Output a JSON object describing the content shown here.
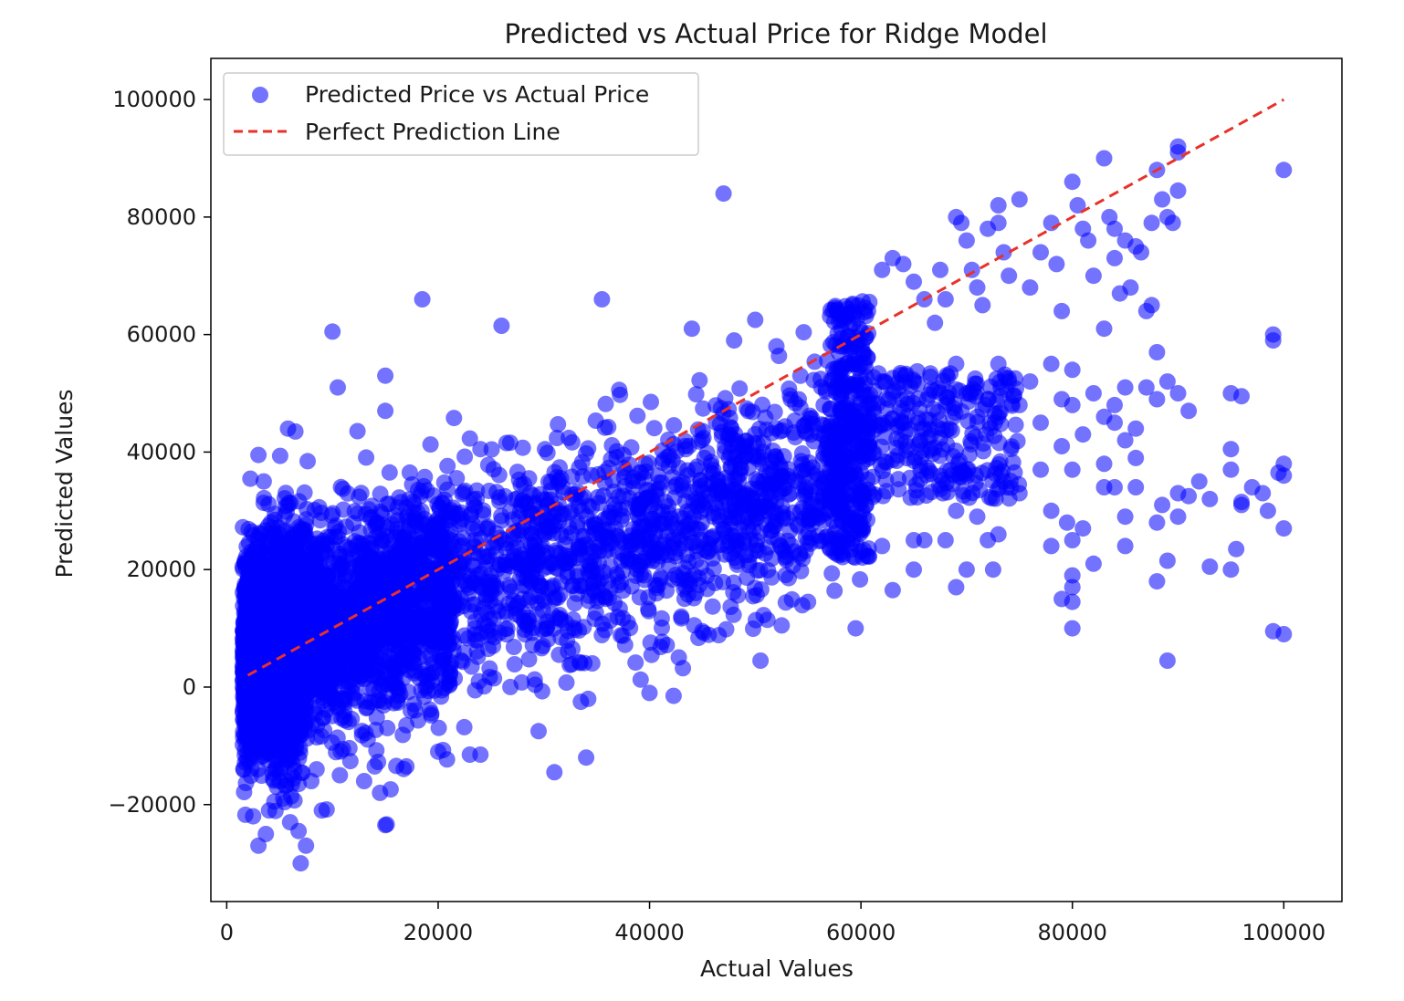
{
  "chart_data": {
    "type": "scatter",
    "title": "Predicted vs Actual Price for Ridge Model",
    "xlabel": "Actual Values",
    "ylabel": "Predicted Values",
    "xlim": [
      -1500,
      105500
    ],
    "ylim": [
      -36500,
      107000
    ],
    "x_ticks": [
      0,
      20000,
      40000,
      60000,
      80000,
      100000
    ],
    "x_tick_labels": [
      "0",
      "20000",
      "40000",
      "60000",
      "80000",
      "100000"
    ],
    "y_ticks": [
      -20000,
      0,
      20000,
      40000,
      60000,
      80000,
      100000
    ],
    "y_tick_labels": [
      "−20000",
      "0",
      "20000",
      "40000",
      "60000",
      "80000",
      "100000"
    ],
    "grid": false,
    "legend_position": "top-left",
    "series": [
      {
        "name": "Predicted Price vs Actual Price",
        "kind": "scatter",
        "color": "#0000ff",
        "opacity": 0.55,
        "note_on_density": "dense cloud along trend (actual 1500-60000) rendered from listed outliers plus band",
        "band": {
          "x_min": 1500,
          "x_max": 60500,
          "slope": 0.55,
          "intercept": 4500,
          "spread": 9000
        },
        "points": [
          [
            2500,
            -22000
          ],
          [
            3000,
            -27000
          ],
          [
            4000,
            -21000
          ],
          [
            4500,
            -19500
          ],
          [
            3700,
            -25000
          ],
          [
            6000,
            -23000
          ],
          [
            6800,
            -24500
          ],
          [
            7000,
            -30000
          ],
          [
            7500,
            -27000
          ],
          [
            9000,
            -21000
          ],
          [
            8000,
            -16000
          ],
          [
            5000,
            -16000
          ],
          [
            6800,
            -16500
          ],
          [
            8500,
            -14000
          ],
          [
            13000,
            -16000
          ],
          [
            14500,
            -18000
          ],
          [
            15000,
            -23500
          ],
          [
            14000,
            -13500
          ],
          [
            17000,
            -6500
          ],
          [
            17000,
            -13500
          ],
          [
            20000,
            -11000
          ],
          [
            23000,
            -11500
          ],
          [
            24000,
            -11500
          ],
          [
            29500,
            -7500
          ],
          [
            31000,
            -14500
          ],
          [
            34000,
            -12000
          ],
          [
            33500,
            -2500
          ],
          [
            34200,
            -2000
          ],
          [
            40000,
            -1000
          ],
          [
            18500,
            66000
          ],
          [
            35500,
            66000
          ],
          [
            10000,
            60500
          ],
          [
            26000,
            61500
          ],
          [
            10500,
            51000
          ],
          [
            15000,
            53000
          ],
          [
            5800,
            44000
          ],
          [
            6500,
            43500
          ],
          [
            3000,
            39500
          ],
          [
            3500,
            35000
          ],
          [
            15000,
            47000
          ],
          [
            24000,
            40500
          ],
          [
            47000,
            84000
          ],
          [
            44000,
            61000
          ],
          [
            48000,
            59000
          ],
          [
            50000,
            62500
          ],
          [
            52000,
            58000
          ],
          [
            50500,
            4500
          ],
          [
            52500,
            10500
          ],
          [
            59500,
            10000
          ],
          [
            45000,
            9500
          ],
          [
            43000,
            12000
          ],
          [
            55000,
            14500
          ],
          [
            60500,
            31000
          ],
          [
            62000,
            24000
          ],
          [
            63000,
            16500
          ],
          [
            65000,
            20000
          ],
          [
            65000,
            25000
          ],
          [
            66000,
            25000
          ],
          [
            68000,
            25000
          ],
          [
            69000,
            17000
          ],
          [
            69000,
            30000
          ],
          [
            70000,
            20000
          ],
          [
            71000,
            29000
          ],
          [
            72500,
            20000
          ],
          [
            72000,
            25000
          ],
          [
            73000,
            26000
          ],
          [
            75000,
            33000
          ],
          [
            77000,
            37000
          ],
          [
            78000,
            30000
          ],
          [
            78000,
            24000
          ],
          [
            79000,
            15000
          ],
          [
            79500,
            28000
          ],
          [
            80000,
            19000
          ],
          [
            80000,
            17000
          ],
          [
            80000,
            14500
          ],
          [
            80000,
            10000
          ],
          [
            80000,
            25000
          ],
          [
            81000,
            27000
          ],
          [
            82000,
            21000
          ],
          [
            83000,
            34000
          ],
          [
            84000,
            34000
          ],
          [
            85000,
            24000
          ],
          [
            85000,
            29000
          ],
          [
            86000,
            34000
          ],
          [
            86000,
            39000
          ],
          [
            88000,
            18000
          ],
          [
            88000,
            28000
          ],
          [
            88500,
            31000
          ],
          [
            89000,
            4500
          ],
          [
            89000,
            21500
          ],
          [
            90000,
            29000
          ],
          [
            90000,
            33000
          ],
          [
            91000,
            32500
          ],
          [
            92000,
            35000
          ],
          [
            93000,
            32000
          ],
          [
            95000,
            20000
          ],
          [
            95500,
            23500
          ],
          [
            93000,
            20500
          ],
          [
            96000,
            31000
          ],
          [
            98000,
            33000
          ],
          [
            98500,
            30000
          ],
          [
            99000,
            9500
          ],
          [
            100000,
            9000
          ],
          [
            100000,
            27000
          ],
          [
            100000,
            36000
          ],
          [
            100000,
            38000
          ],
          [
            99500,
            36500
          ],
          [
            97000,
            34000
          ],
          [
            95000,
            37000
          ],
          [
            95000,
            40500
          ],
          [
            96000,
            31500
          ],
          [
            62000,
            71000
          ],
          [
            63000,
            73000
          ],
          [
            64000,
            72000
          ],
          [
            65000,
            69000
          ],
          [
            66000,
            66000
          ],
          [
            67000,
            62000
          ],
          [
            67500,
            71000
          ],
          [
            68000,
            66000
          ],
          [
            69000,
            80000
          ],
          [
            69500,
            79000
          ],
          [
            70000,
            76000
          ],
          [
            70500,
            71000
          ],
          [
            71000,
            68000
          ],
          [
            71500,
            65000
          ],
          [
            72000,
            78000
          ],
          [
            73000,
            82000
          ],
          [
            73000,
            79000
          ],
          [
            73500,
            74000
          ],
          [
            74000,
            70000
          ],
          [
            75000,
            83000
          ],
          [
            76000,
            68000
          ],
          [
            77000,
            74000
          ],
          [
            78000,
            79000
          ],
          [
            78500,
            72000
          ],
          [
            79000,
            64000
          ],
          [
            80000,
            86000
          ],
          [
            80500,
            82000
          ],
          [
            81000,
            78000
          ],
          [
            81500,
            76000
          ],
          [
            82000,
            70000
          ],
          [
            83000,
            90000
          ],
          [
            83500,
            80000
          ],
          [
            84000,
            78000
          ],
          [
            84000,
            73000
          ],
          [
            84500,
            67000
          ],
          [
            85000,
            76000
          ],
          [
            85500,
            68000
          ],
          [
            86000,
            75000
          ],
          [
            86500,
            74000
          ],
          [
            87500,
            79000
          ],
          [
            88000,
            88000
          ],
          [
            88500,
            83000
          ],
          [
            89000,
            80000
          ],
          [
            89500,
            79000
          ],
          [
            90000,
            92000
          ],
          [
            90000,
            91000
          ],
          [
            90000,
            84500
          ],
          [
            100000,
            88000
          ],
          [
            99000,
            60000
          ],
          [
            99000,
            59000
          ],
          [
            83000,
            61000
          ],
          [
            88000,
            57000
          ],
          [
            87500,
            65000
          ],
          [
            87000,
            64000
          ],
          [
            62000,
            52000
          ],
          [
            63000,
            50000
          ],
          [
            64000,
            47000
          ],
          [
            65000,
            52000
          ],
          [
            66000,
            44000
          ],
          [
            68000,
            48000
          ],
          [
            69000,
            55000
          ],
          [
            70000,
            50000
          ],
          [
            71000,
            46000
          ],
          [
            72000,
            49000
          ],
          [
            73000,
            55000
          ],
          [
            74000,
            52000
          ],
          [
            75000,
            48000
          ],
          [
            76000,
            52000
          ],
          [
            77000,
            45000
          ],
          [
            78000,
            55000
          ],
          [
            79000,
            49000
          ],
          [
            80000,
            54000
          ],
          [
            80000,
            48000
          ],
          [
            81000,
            43000
          ],
          [
            82000,
            50000
          ],
          [
            83000,
            46000
          ],
          [
            84000,
            48000
          ],
          [
            85000,
            51000
          ],
          [
            86000,
            44000
          ],
          [
            87000,
            51000
          ],
          [
            88000,
            49000
          ],
          [
            89000,
            52000
          ],
          [
            90000,
            50000
          ],
          [
            95000,
            50000
          ],
          [
            96000,
            49500
          ],
          [
            91000,
            47000
          ],
          [
            85000,
            42000
          ],
          [
            84000,
            45000
          ],
          [
            83000,
            38000
          ],
          [
            80000,
            37000
          ],
          [
            79000,
            41000
          ]
        ]
      },
      {
        "name": "Perfect Prediction Line",
        "kind": "line",
        "style": "dashed",
        "color": "#e8312a",
        "x": [
          2000,
          100000
        ],
        "y": [
          2000,
          100000
        ]
      }
    ]
  }
}
